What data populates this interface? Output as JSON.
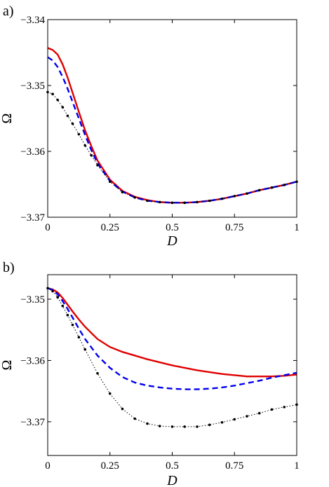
{
  "chart_data": [
    {
      "panel_label": "a)",
      "type": "line",
      "xlabel": "D",
      "ylabel": "Ω",
      "xlim": [
        0,
        1
      ],
      "ylim": [
        -3.37,
        -3.34
      ],
      "x_ticks": [
        0,
        0.25,
        0.5,
        0.75,
        1
      ],
      "x_tick_labels": [
        "0",
        "0.25",
        "0.5",
        "0.75",
        "1"
      ],
      "y_ticks": [
        -3.37,
        -3.36,
        -3.35,
        -3.34
      ],
      "y_tick_labels": [
        "−3.37",
        "−3.36",
        "−3.35",
        "−3.34"
      ],
      "grid": false,
      "series": [
        {
          "color": "#e00000",
          "style": "solid",
          "x": [
            0,
            0.02,
            0.04,
            0.06,
            0.08,
            0.1,
            0.125,
            0.15,
            0.175,
            0.2,
            0.25,
            0.3,
            0.35,
            0.4,
            0.45,
            0.5,
            0.55,
            0.6,
            0.65,
            0.7,
            0.75,
            0.8,
            0.85,
            0.9,
            0.95,
            1.0
          ],
          "values": [
            -3.3443,
            -3.3446,
            -3.3453,
            -3.3468,
            -3.3488,
            -3.3511,
            -3.354,
            -3.3568,
            -3.3592,
            -3.3614,
            -3.3643,
            -3.366,
            -3.3669,
            -3.3674,
            -3.3677,
            -3.3678,
            -3.3678,
            -3.3677,
            -3.3675,
            -3.3672,
            -3.3668,
            -3.3664,
            -3.3659,
            -3.3655,
            -3.3651,
            -3.3646
          ]
        },
        {
          "color": "#0000ee",
          "style": "dashed",
          "x": [
            0,
            0.02,
            0.04,
            0.06,
            0.08,
            0.1,
            0.125,
            0.15,
            0.175,
            0.2,
            0.25,
            0.3,
            0.35,
            0.4,
            0.45,
            0.5,
            0.55,
            0.6,
            0.65,
            0.7,
            0.75,
            0.8,
            0.85,
            0.9,
            0.95,
            1.0
          ],
          "values": [
            -3.3457,
            -3.3462,
            -3.3472,
            -3.3487,
            -3.3505,
            -3.3525,
            -3.355,
            -3.3575,
            -3.3598,
            -3.3618,
            -3.3645,
            -3.3661,
            -3.367,
            -3.3675,
            -3.3677,
            -3.3678,
            -3.3678,
            -3.3677,
            -3.3675,
            -3.3672,
            -3.3668,
            -3.3664,
            -3.3659,
            -3.3655,
            -3.3651,
            -3.3646
          ]
        },
        {
          "color": "#000000",
          "style": "dotted",
          "x": [
            0,
            0.02,
            0.04,
            0.06,
            0.08,
            0.1,
            0.125,
            0.15,
            0.175,
            0.2,
            0.25,
            0.3,
            0.35,
            0.4,
            0.45,
            0.5,
            0.55,
            0.6,
            0.65,
            0.7,
            0.75,
            0.8,
            0.85,
            0.9,
            0.95,
            1.0
          ],
          "values": [
            -3.351,
            -3.3513,
            -3.3522,
            -3.3533,
            -3.3546,
            -3.3558,
            -3.3574,
            -3.3591,
            -3.3606,
            -3.3621,
            -3.3646,
            -3.3662,
            -3.367,
            -3.3675,
            -3.3677,
            -3.3678,
            -3.3678,
            -3.3677,
            -3.3675,
            -3.3672,
            -3.3668,
            -3.3664,
            -3.3659,
            -3.3655,
            -3.3651,
            -3.3646
          ]
        }
      ]
    },
    {
      "panel_label": "b)",
      "type": "line",
      "xlabel": "D",
      "ylabel": "Ω",
      "xlim": [
        0,
        1
      ],
      "ylim": [
        -3.3755,
        -3.346
      ],
      "x_ticks": [
        0,
        0.25,
        0.5,
        0.75,
        1
      ],
      "x_tick_labels": [
        "0",
        "0.25",
        "0.5",
        "0.75",
        "1"
      ],
      "y_ticks": [
        -3.37,
        -3.36,
        -3.35
      ],
      "y_tick_labels": [
        "−3.37",
        "−3.36",
        "−3.35"
      ],
      "grid": false,
      "series": [
        {
          "color": "#e00000",
          "style": "solid",
          "x": [
            0,
            0.02,
            0.04,
            0.06,
            0.08,
            0.1,
            0.125,
            0.15,
            0.2,
            0.25,
            0.3,
            0.35,
            0.4,
            0.45,
            0.5,
            0.55,
            0.6,
            0.65,
            0.7,
            0.75,
            0.8,
            0.85,
            0.9,
            0.95,
            1.0
          ],
          "values": [
            -3.3482,
            -3.3484,
            -3.3489,
            -3.3498,
            -3.3509,
            -3.352,
            -3.3533,
            -3.3545,
            -3.3565,
            -3.3578,
            -3.3586,
            -3.3592,
            -3.3598,
            -3.3603,
            -3.3608,
            -3.3612,
            -3.3616,
            -3.3619,
            -3.3622,
            -3.3624,
            -3.3626,
            -3.3626,
            -3.3626,
            -3.3625,
            -3.3623
          ]
        },
        {
          "color": "#0000ee",
          "style": "dashed",
          "x": [
            0,
            0.02,
            0.04,
            0.06,
            0.08,
            0.1,
            0.125,
            0.15,
            0.2,
            0.25,
            0.3,
            0.35,
            0.4,
            0.45,
            0.5,
            0.55,
            0.6,
            0.65,
            0.7,
            0.75,
            0.8,
            0.85,
            0.9,
            0.95,
            1.0
          ],
          "values": [
            -3.3482,
            -3.3485,
            -3.3492,
            -3.3503,
            -3.3516,
            -3.353,
            -3.3548,
            -3.3565,
            -3.3592,
            -3.3612,
            -3.3627,
            -3.3636,
            -3.3641,
            -3.3644,
            -3.3646,
            -3.3647,
            -3.3647,
            -3.3646,
            -3.3644,
            -3.3641,
            -3.3637,
            -3.3633,
            -3.3628,
            -3.3624,
            -3.362
          ]
        },
        {
          "color": "#000000",
          "style": "dotted",
          "x": [
            0,
            0.02,
            0.04,
            0.06,
            0.08,
            0.1,
            0.125,
            0.15,
            0.2,
            0.25,
            0.3,
            0.35,
            0.4,
            0.45,
            0.5,
            0.55,
            0.6,
            0.65,
            0.7,
            0.75,
            0.8,
            0.85,
            0.9,
            0.95,
            1.0
          ],
          "values": [
            -3.3482,
            -3.3487,
            -3.3497,
            -3.3511,
            -3.3526,
            -3.3542,
            -3.3562,
            -3.3582,
            -3.3621,
            -3.3654,
            -3.3679,
            -3.3695,
            -3.3703,
            -3.3707,
            -3.3708,
            -3.3708,
            -3.3708,
            -3.3705,
            -3.3701,
            -3.3696,
            -3.3691,
            -3.3686,
            -3.368,
            -3.3676,
            -3.3672
          ]
        }
      ]
    }
  ]
}
